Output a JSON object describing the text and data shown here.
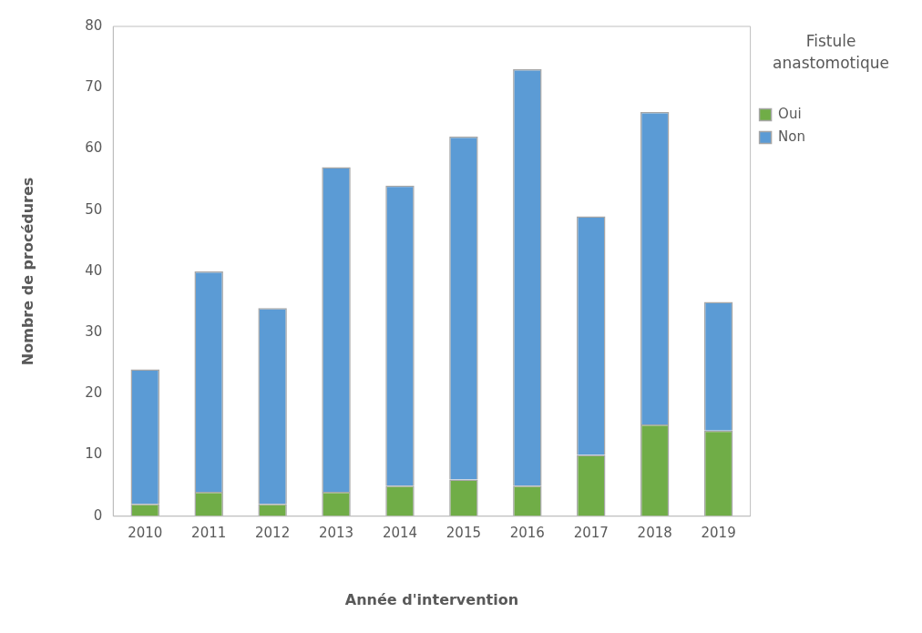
{
  "chart_data": {
    "type": "bar",
    "xlabel": "Année d'intervention",
    "ylabel": "Nombre de procédures",
    "legend_title": "Fistule anastomotique",
    "categories": [
      "2010",
      "2011",
      "2012",
      "2013",
      "2014",
      "2015",
      "2016",
      "2017",
      "2018",
      "2019"
    ],
    "stacked": true,
    "ylim": [
      0,
      80
    ],
    "yticks": [
      0,
      10,
      20,
      30,
      40,
      50,
      60,
      70,
      80
    ],
    "grid": false,
    "legend": "top right",
    "series": [
      {
        "name": "Oui",
        "color": "#70ad47",
        "values": [
          2,
          4,
          2,
          4,
          5,
          6,
          5,
          10,
          15,
          14
        ]
      },
      {
        "name": "Non",
        "color": "#5b9bd5",
        "values": [
          22,
          36,
          32,
          53,
          49,
          56,
          68,
          39,
          51,
          21
        ]
      }
    ]
  }
}
